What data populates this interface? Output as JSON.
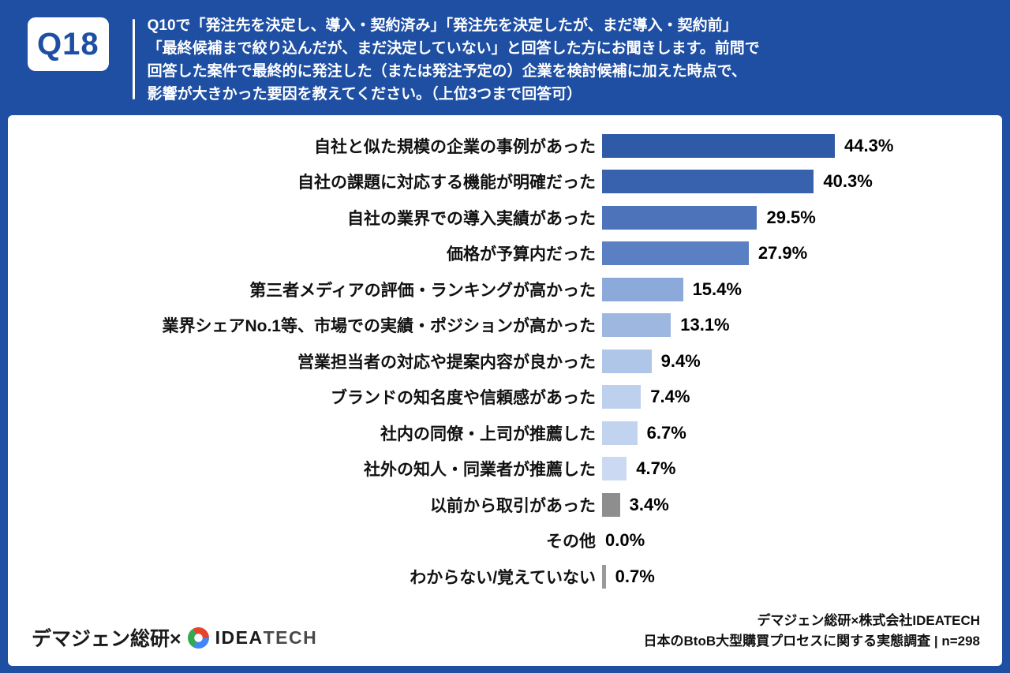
{
  "header": {
    "badge": "Q18",
    "question_lines": [
      "Q10で「発注先を決定し、導入・契約済み」「発注先を決定したが、まだ導入・契約前」",
      "「最終候補まで絞り込んだが、まだ決定していない」と回答した方にお聞きします。前問で",
      "回答した案件で最終的に発注した（または発注予定の）企業を検討候補に加えた時点で、",
      "影響が大きかった要因を教えてください。（上位3つまで回答可）"
    ]
  },
  "chart_data": {
    "type": "bar",
    "orientation": "horizontal",
    "title": "",
    "xlabel": "",
    "ylabel": "",
    "xlim": [
      0,
      46
    ],
    "grid": false,
    "legend": false,
    "categories": [
      "自社と似た規模の企業の事例があった",
      "自社の課題に対応する機能が明確だった",
      "自社の業界での導入実績があった",
      "価格が予算内だった",
      "第三者メディアの評価・ランキングが高かった",
      "業界シェアNo.1等、市場での実績・ポジションが高かった",
      "営業担当者の対応や提案内容が良かった",
      "ブランドの知名度や信頼感があった",
      "社内の同僚・上司が推薦した",
      "社外の知人・同業者が推薦した",
      "以前から取引があった",
      "その他",
      "わからない/覚えていない"
    ],
    "values": [
      44.3,
      40.3,
      29.5,
      27.9,
      15.4,
      13.1,
      9.4,
      7.4,
      6.7,
      4.7,
      3.4,
      0.0,
      0.7
    ],
    "value_labels": [
      "44.3%",
      "40.3%",
      "29.5%",
      "27.9%",
      "15.4%",
      "13.1%",
      "9.4%",
      "7.4%",
      "6.7%",
      "4.7%",
      "3.4%",
      "0.0%",
      "0.7%"
    ],
    "bar_colors": [
      "#2f5aa8",
      "#3862ae",
      "#4d74bb",
      "#5a80c3",
      "#8ba9d9",
      "#9db7e1",
      "#b0c6e9",
      "#bdd0ee",
      "#c1d3ef",
      "#cbdaf2",
      "#8e8e8e",
      "#ffffff",
      "#9a9a9a"
    ]
  },
  "footer": {
    "left_text": "デマジェン総研×",
    "logo": {
      "idea": "IDEA",
      "tech": "TECH"
    },
    "right_line1": "デマジェン総研×株式会社IDEATECH",
    "right_line2": "日本のBtoB大型購買プロセスに関する実態調査 | n=298"
  },
  "colors": {
    "frame_blue": "#1e4fa3",
    "panel_white": "#ffffff",
    "gray_bar": "#8e8e8e"
  }
}
